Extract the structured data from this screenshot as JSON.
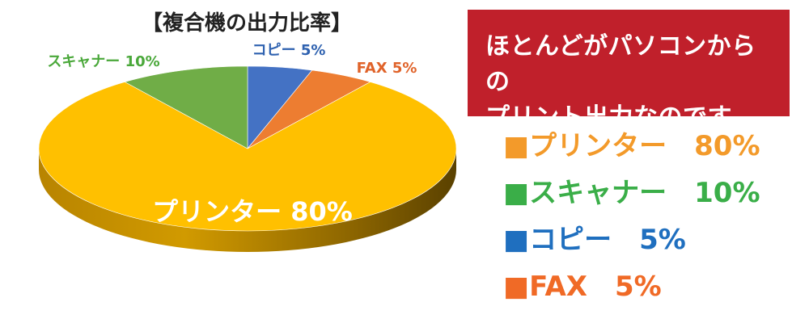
{
  "chart_data": {
    "type": "pie",
    "title": "【複合機の出力比率】",
    "slices": [
      {
        "name": "コピー",
        "value": 5,
        "label": "コピー 5%",
        "color": "#4472c4",
        "label_color": "#2f62b0"
      },
      {
        "name": "FAX",
        "value": 5,
        "label": "FAX 5%",
        "color": "#ed7d31",
        "label_color": "#e0632a"
      },
      {
        "name": "プリンター",
        "value": 80,
        "label": "プリンター 80%",
        "color": "#ffc000",
        "label_color": "#ffffff"
      },
      {
        "name": "スキャナー",
        "value": 10,
        "label": "スキャナー 10%",
        "color": "#70ad47",
        "label_color": "#4aa83a"
      }
    ],
    "start_angle_deg": 0,
    "style": "3d"
  },
  "callout": {
    "line1": "ほとんどがパソコンからの",
    "line2": "プリント出力なのです。"
  },
  "legend": [
    {
      "label": "■プリンター　80%",
      "color": "#f39a2a"
    },
    {
      "label": "■スキャナー　10%",
      "color": "#3aae48"
    },
    {
      "label": "■コピー　5%",
      "color": "#1f6fbf"
    },
    {
      "label": "■FAX　5%",
      "color": "#f06a26"
    }
  ]
}
